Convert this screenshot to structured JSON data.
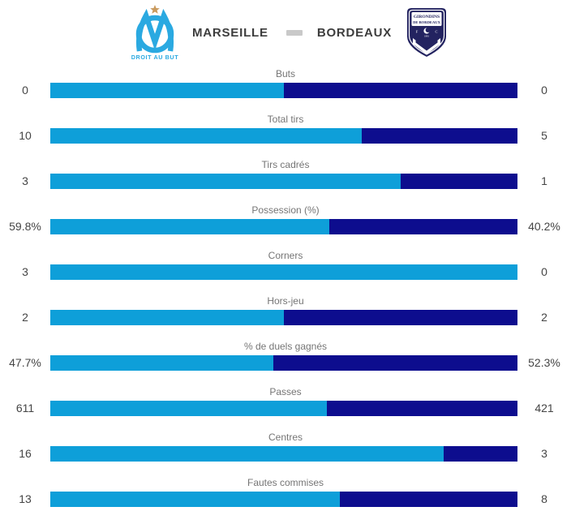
{
  "header": {
    "home_team": "MARSEILLE",
    "away_team": "BORDEAUX",
    "home_motto": "DROIT AU BUT",
    "away_crest_line1": "GIRONDINS",
    "away_crest_line2": "DE BORDEAUX",
    "away_crest_left": "F",
    "away_crest_right": "C",
    "away_crest_year": "1881"
  },
  "colors": {
    "home_bar": "#0e9fd9",
    "away_bar": "#0d0d8e",
    "om_blue": "#2aa9e1",
    "star_gold": "#c99a5e",
    "girondins_navy": "#232360",
    "separator_gray": "#c9c9c9",
    "label_text": "#757575",
    "value_text": "#454545"
  },
  "chart_data": {
    "type": "bar",
    "subtype": "stacked-horizontal-comparison",
    "legend_position": "none",
    "grid": false,
    "teams": [
      "Marseille",
      "Bordeaux"
    ],
    "stats": [
      {
        "label": "Buts",
        "home": "0",
        "away": "0",
        "home_pct": 50.0,
        "away_pct": 50.0
      },
      {
        "label": "Total tirs",
        "home": "10",
        "away": "5",
        "home_pct": 66.7,
        "away_pct": 33.3
      },
      {
        "label": "Tirs cadrés",
        "home": "3",
        "away": "1",
        "home_pct": 75.0,
        "away_pct": 25.0
      },
      {
        "label": "Possession (%)",
        "home": "59.8%",
        "away": "40.2%",
        "home_pct": 59.8,
        "away_pct": 40.2
      },
      {
        "label": "Corners",
        "home": "3",
        "away": "0",
        "home_pct": 100.0,
        "away_pct": 0.0
      },
      {
        "label": "Hors-jeu",
        "home": "2",
        "away": "2",
        "home_pct": 50.0,
        "away_pct": 50.0
      },
      {
        "label": "% de duels gagnés",
        "home": "47.7%",
        "away": "52.3%",
        "home_pct": 47.7,
        "away_pct": 52.3
      },
      {
        "label": "Passes",
        "home": "611",
        "away": "421",
        "home_pct": 59.2,
        "away_pct": 40.8
      },
      {
        "label": "Centres",
        "home": "16",
        "away": "3",
        "home_pct": 84.2,
        "away_pct": 15.8
      },
      {
        "label": "Fautes commises",
        "home": "13",
        "away": "8",
        "home_pct": 61.9,
        "away_pct": 38.1
      }
    ]
  }
}
